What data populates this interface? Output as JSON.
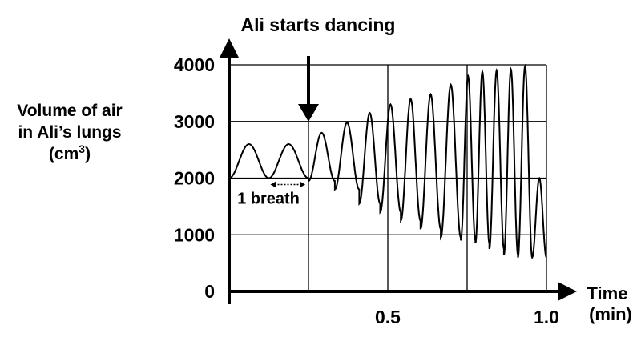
{
  "chart_data": {
    "type": "line",
    "title": "",
    "ylabel": [
      "Volume of air",
      "in Ali’s lungs",
      "(cm",
      "3",
      ")"
    ],
    "xlabel": [
      "Time",
      "(min)"
    ],
    "yticks": [
      "0",
      "1000",
      "2000",
      "3000",
      "4000"
    ],
    "ytick_values": [
      0,
      1000,
      2000,
      3000,
      4000
    ],
    "xticks": [
      "0.5",
      "1.0"
    ],
    "xtick_values": [
      0.5,
      1.0
    ],
    "ylim": [
      0,
      4300
    ],
    "xlim": [
      0,
      1.05
    ],
    "grid": true,
    "annotations": {
      "event": "Ali starts dancing",
      "event_x": 0.25,
      "breath_label": "1 breath",
      "breath_span": [
        0.125,
        0.25
      ]
    },
    "series": [
      {
        "breaths": [
          {
            "start": 0.0,
            "end": 0.125,
            "min": 2000,
            "max": 2600
          },
          {
            "start": 0.125,
            "end": 0.25,
            "min": 2000,
            "max": 2600
          },
          {
            "start": 0.25,
            "end": 0.333,
            "min": 1950,
            "max": 2800
          },
          {
            "start": 0.333,
            "end": 0.41,
            "min": 1800,
            "max": 2980
          },
          {
            "start": 0.41,
            "end": 0.476,
            "min": 1550,
            "max": 3150
          },
          {
            "start": 0.476,
            "end": 0.541,
            "min": 1400,
            "max": 3300
          },
          {
            "start": 0.541,
            "end": 0.603,
            "min": 1250,
            "max": 3400
          },
          {
            "start": 0.603,
            "end": 0.667,
            "min": 1100,
            "max": 3480
          },
          {
            "start": 0.667,
            "end": 0.73,
            "min": 950,
            "max": 3650
          },
          {
            "start": 0.73,
            "end": 0.776,
            "min": 900,
            "max": 3800
          },
          {
            "start": 0.776,
            "end": 0.82,
            "min": 850,
            "max": 3880
          },
          {
            "start": 0.82,
            "end": 0.866,
            "min": 750,
            "max": 3900
          },
          {
            "start": 0.866,
            "end": 0.91,
            "min": 650,
            "max": 3920
          },
          {
            "start": 0.91,
            "end": 0.955,
            "min": 600,
            "max": 3970
          },
          {
            "start": 0.955,
            "end": 1.0,
            "min": 600,
            "max": 2000
          }
        ]
      }
    ]
  }
}
